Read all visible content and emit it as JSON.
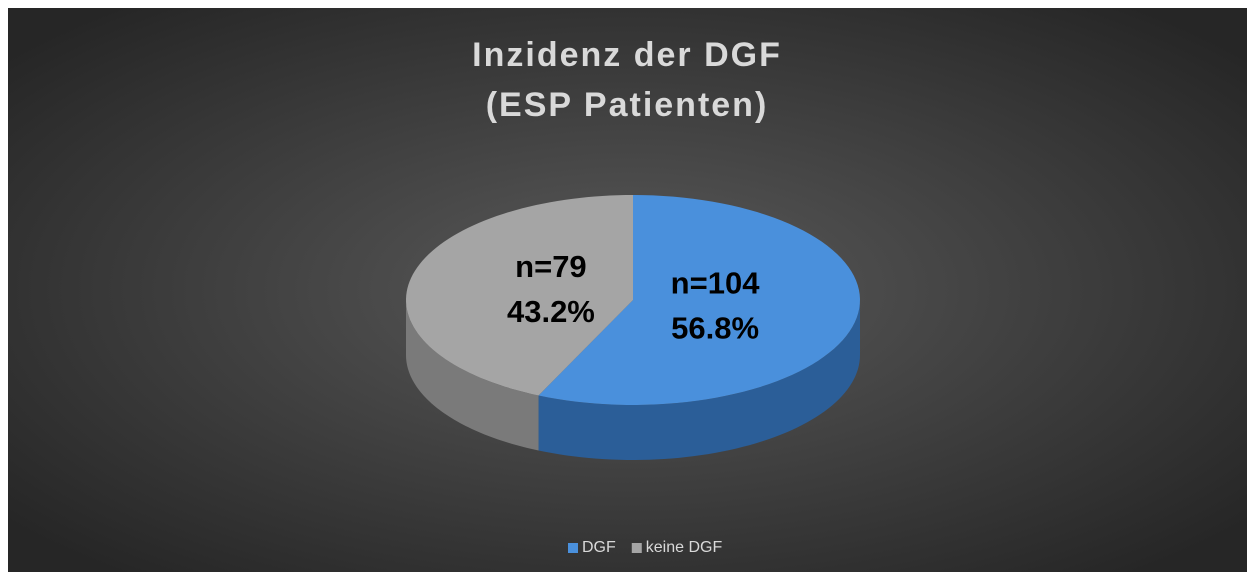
{
  "chart_data": {
    "type": "pie3d",
    "title": "Inzidenz der DGF",
    "subtitle": "(ESP Patienten)",
    "categories": [
      "DGF",
      "keine DGF"
    ],
    "values": [
      104,
      79
    ],
    "value_labels": [
      "n=104",
      "n=79"
    ],
    "percent_labels": [
      "56.8%",
      "43.2%"
    ],
    "colors": [
      "#4a90dc",
      "#a5a5a5"
    ],
    "side_colors": [
      "#2b5e98",
      "#7a7a7a"
    ],
    "legend": "bottom"
  }
}
